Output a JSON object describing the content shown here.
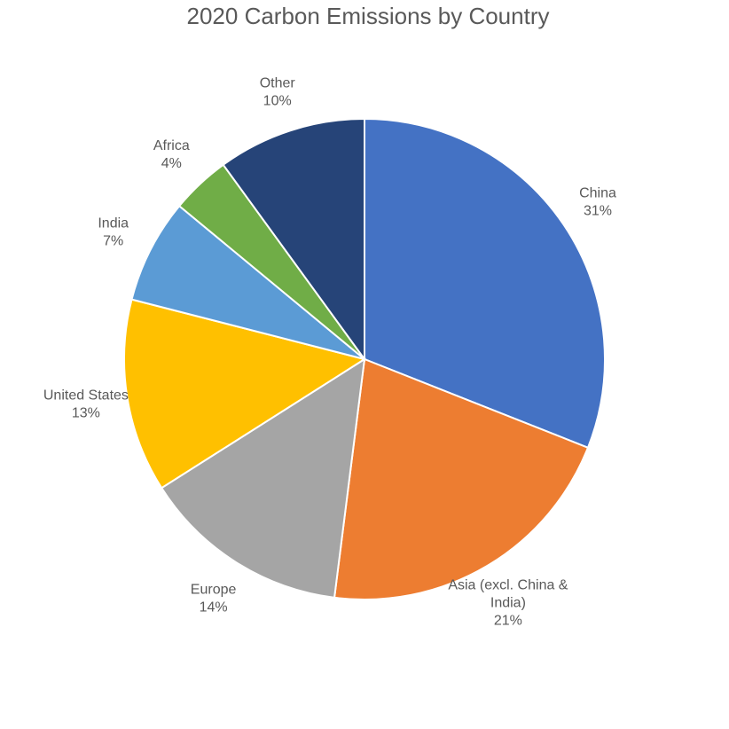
{
  "chart_data": {
    "type": "pie",
    "title": "2020 Carbon Emissions by Country",
    "slices": [
      {
        "name": "China",
        "value": 31,
        "label_lines": [
          "China",
          "31%"
        ],
        "color": "#4472C4"
      },
      {
        "name": "Asia (excl. China & India)",
        "value": 21,
        "label_lines": [
          "Asia (excl. China &",
          "India)",
          "21%"
        ],
        "color": "#ED7D31"
      },
      {
        "name": "Europe",
        "value": 14,
        "label_lines": [
          "Europe",
          "14%"
        ],
        "color": "#A5A5A5"
      },
      {
        "name": "United States",
        "value": 13,
        "label_lines": [
          "United States",
          "13%"
        ],
        "color": "#FFC000"
      },
      {
        "name": "India",
        "value": 7,
        "label_lines": [
          "India",
          "7%"
        ],
        "color": "#5B9BD5"
      },
      {
        "name": "Africa",
        "value": 4,
        "label_lines": [
          "Africa",
          "4%"
        ],
        "color": "#70AD47"
      },
      {
        "name": "Other",
        "value": 10,
        "label_lines": [
          "Other",
          "10%"
        ],
        "color": "#264478"
      }
    ],
    "start_direction": "top",
    "direction": "clockwise",
    "legend": "none"
  }
}
